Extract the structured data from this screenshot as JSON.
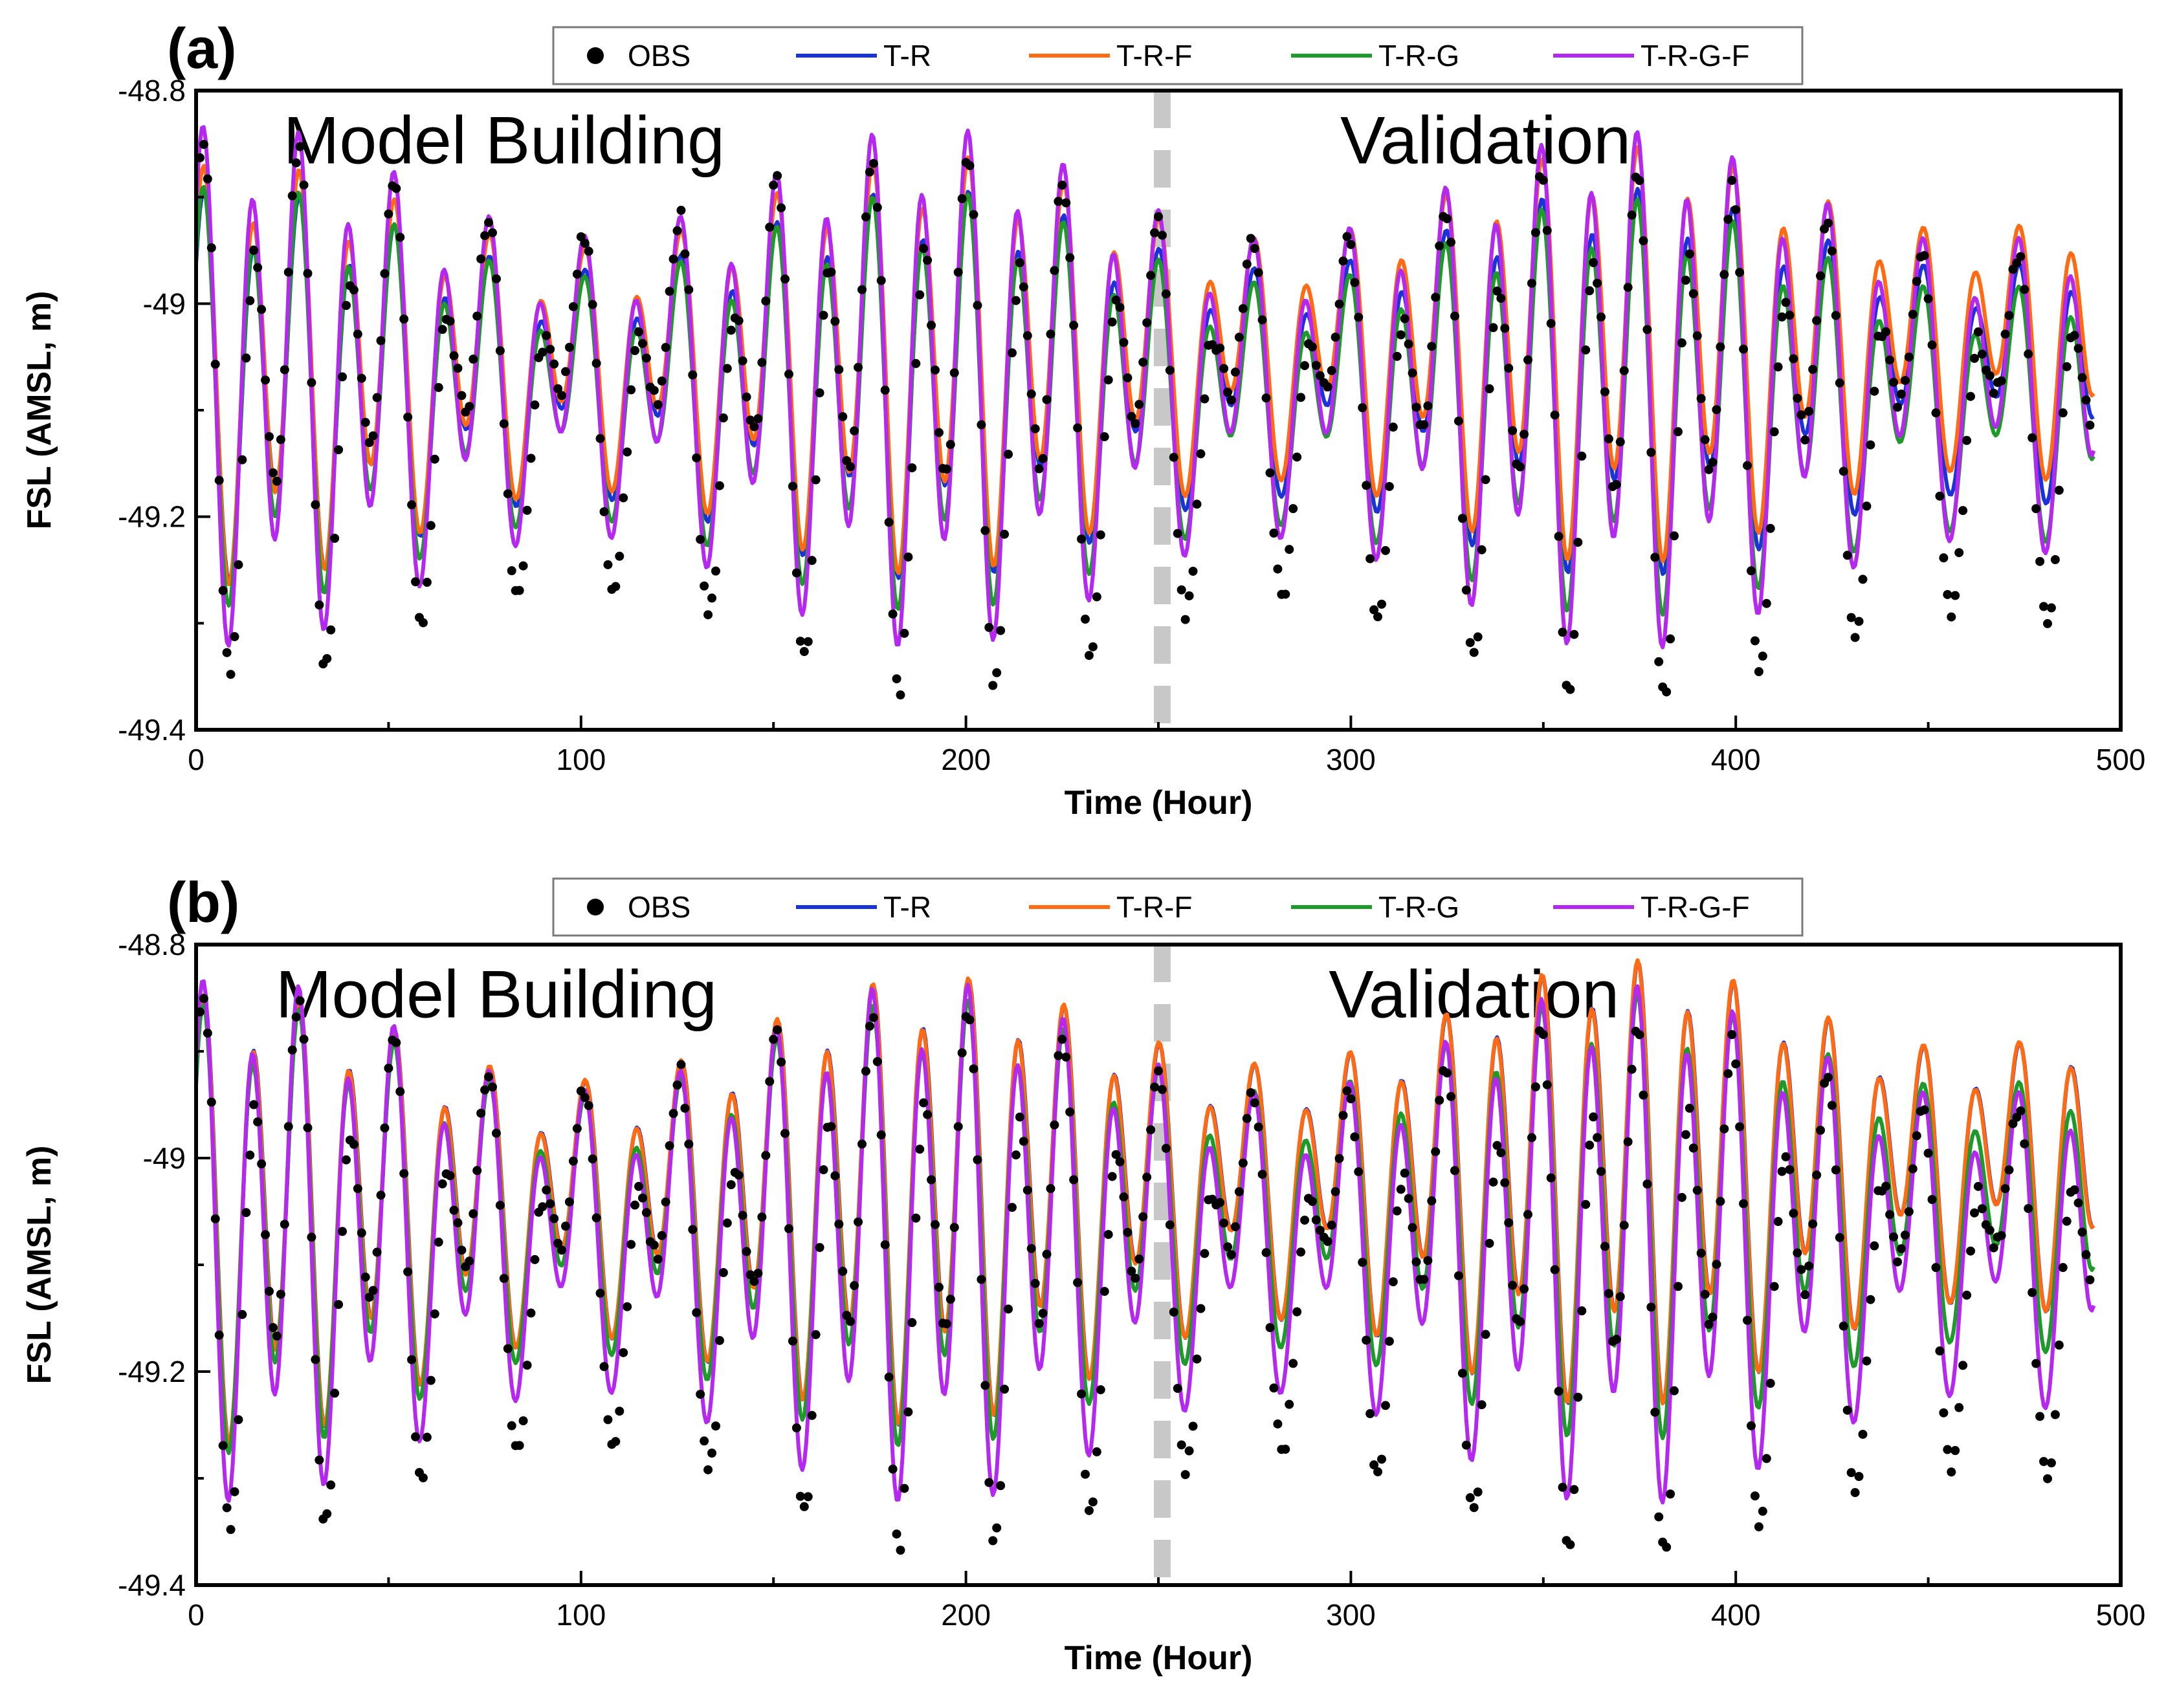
{
  "chart_data": [
    {
      "type": "line",
      "panel_label": "(a)",
      "xlabel": "Time (Hour)",
      "ylabel": "FSL (AMSL, m)",
      "xlim": [
        0,
        500
      ],
      "ylim": [
        -49.4,
        -48.8
      ],
      "xticks": [
        0,
        100,
        200,
        300,
        400,
        500
      ],
      "xtick_labels": [
        "0",
        "100",
        "200",
        "300",
        "400",
        "500"
      ],
      "yticks": [
        -49.4,
        -49.2,
        -49,
        -48.8
      ],
      "ytick_labels": [
        "-49.4",
        "-49.2",
        "-49",
        "-48.8"
      ],
      "grid": false,
      "legend_position": "top-center",
      "divider_x": 251,
      "regions": [
        {
          "label": "Model Building",
          "x": 80,
          "y": -48.85
        },
        {
          "label": "Validation",
          "x": 335,
          "y": -48.85
        }
      ],
      "series": [
        {
          "name": "OBS",
          "style": "scatter",
          "color": "#000000",
          "amp": 0.13,
          "offset": 0.0,
          "trend": -0.02,
          "mod": 0.11
        },
        {
          "name": "T-R",
          "style": "line",
          "color": "#1a33d6",
          "amp": 0.11,
          "offset": 0.01,
          "trend": 0.01,
          "mod": 0.05
        },
        {
          "name": "T-R-F",
          "style": "line",
          "color": "#ff6a13",
          "amp": 0.12,
          "offset": 0.02,
          "trend": 0.03,
          "mod": 0.05
        },
        {
          "name": "T-R-G",
          "style": "line",
          "color": "#1e9a2b",
          "amp": 0.12,
          "offset": 0.0,
          "trend": -0.01,
          "mod": 0.05
        },
        {
          "name": "T-R-G-F",
          "style": "line",
          "color": "#b428f0",
          "amp": 0.15,
          "offset": 0.01,
          "trend": 0.0,
          "mod": 0.06
        }
      ]
    },
    {
      "type": "line",
      "panel_label": "(b)",
      "xlabel": "Time (Hour)",
      "ylabel": "FSL (AMSL, m)",
      "xlim": [
        0,
        500
      ],
      "ylim": [
        -49.4,
        -48.8
      ],
      "xticks": [
        0,
        100,
        200,
        300,
        400,
        500
      ],
      "xtick_labels": [
        "0",
        "100",
        "200",
        "300",
        "400",
        "500"
      ],
      "yticks": [
        -49.4,
        -49.2,
        -49,
        -48.8
      ],
      "ytick_labels": [
        "-49.4",
        "-49.2",
        "-49",
        "-48.8"
      ],
      "grid": false,
      "legend_position": "top-center",
      "divider_x": 251,
      "regions": [
        {
          "label": "Model Building",
          "x": 78,
          "y": -48.85
        },
        {
          "label": "Validation",
          "x": 332,
          "y": -48.85
        }
      ],
      "series": [
        {
          "name": "OBS",
          "style": "scatter",
          "color": "#000000",
          "amp": 0.13,
          "offset": 0.0,
          "trend": -0.02,
          "mod": 0.11
        },
        {
          "name": "T-R",
          "style": "line",
          "color": "#1a33d6",
          "amp": 0.13,
          "offset": 0.03,
          "trend": 0.05,
          "mod": 0.05
        },
        {
          "name": "T-R-F",
          "style": "line",
          "color": "#ff6a13",
          "amp": 0.13,
          "offset": 0.03,
          "trend": 0.05,
          "mod": 0.05
        },
        {
          "name": "T-R-G",
          "style": "line",
          "color": "#1e9a2b",
          "amp": 0.13,
          "offset": 0.02,
          "trend": 0.02,
          "mod": 0.05
        },
        {
          "name": "T-R-G-F",
          "style": "line",
          "color": "#b428f0",
          "amp": 0.15,
          "offset": 0.01,
          "trend": 0.0,
          "mod": 0.06
        }
      ]
    }
  ]
}
